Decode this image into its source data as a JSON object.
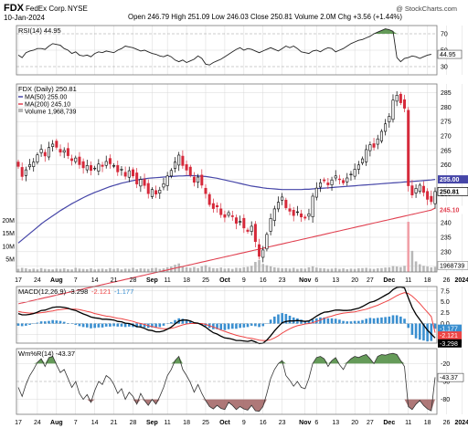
{
  "header": {
    "symbol": "FDX",
    "name": "FedEx Corp.",
    "exchange": "NYSE",
    "date": "10-Jan-2024",
    "stats": "Open 246.79  High 251.09  Low 246.03  Close 250.81  Volume 2.0M  Chg +3.56 (+1.44%)",
    "watermark": "@ StockCharts.com"
  },
  "colors": {
    "up": "#000000",
    "down": "#d6293a",
    "ma50": "#4646a8",
    "ma200": "#e04050",
    "volume": "#b8b8b8",
    "volume_peak": "#f0a0a8",
    "macd_line": "#000000",
    "signal_line": "#ee4444",
    "histogram": "#3a8fd0",
    "overbought_fill": "#4a8a3c",
    "oversold_fill": "#a06060",
    "grid": "#d8d8d8"
  },
  "chart_data": [
    {
      "type": "line",
      "panel": "rsi",
      "legend": "RSI(14) 44.95",
      "ylim": [
        20,
        80
      ],
      "y_ticks": [
        30,
        50,
        70
      ],
      "overbought": 70,
      "oversold": 30,
      "last_value_label": "44.95",
      "values": [
        44,
        41,
        47,
        49,
        50,
        52,
        52,
        51,
        55,
        58,
        57,
        56,
        52,
        50,
        46,
        48,
        44,
        43,
        44,
        42,
        46,
        48,
        47,
        49,
        48,
        47,
        50,
        52,
        55,
        54,
        53,
        51,
        49,
        50,
        48,
        46,
        45,
        43,
        42,
        44,
        42,
        38,
        36,
        38,
        35,
        37,
        39,
        43,
        40,
        33,
        32,
        35,
        37,
        39,
        42,
        45,
        48,
        51,
        53,
        50,
        52,
        51,
        49,
        47,
        49,
        51,
        53,
        51,
        49,
        52,
        55,
        53,
        55,
        52,
        48,
        47,
        46,
        49,
        50,
        48,
        51,
        53,
        52,
        48,
        50,
        52,
        55,
        58,
        60,
        62,
        63,
        65,
        67,
        70,
        72,
        74,
        76,
        75,
        73,
        41,
        36,
        40,
        41,
        43,
        42,
        40,
        42,
        44,
        45
      ]
    },
    {
      "type": "candlestick",
      "panel": "price",
      "legend": {
        "title": "FDX (Daily) 250.81",
        "ma50": "MA(50) 255.00",
        "ma200": "MA(200) 245.10",
        "volume": "Volume 1,968,739"
      },
      "ylim": [
        223,
        288
      ],
      "y_ticks": [
        225,
        230,
        235,
        240,
        245,
        250,
        255,
        260,
        265,
        270,
        275,
        280,
        285
      ],
      "volume_ticks": [
        "20M",
        "15M",
        "10M",
        "5M"
      ],
      "price_labels": {
        "close": "250.81",
        "ma50": "255.00",
        "ma200": "245.10"
      },
      "volume_label": "1968739",
      "close": [
        259.5,
        256.0,
        258.3,
        260.1,
        261.0,
        263.5,
        265.4,
        263.1,
        266.0,
        267.2,
        266.1,
        264.4,
        265.0,
        263.2,
        261.5,
        262.4,
        260.1,
        259.0,
        259.8,
        258.1,
        258.9,
        260.3,
        259.5,
        261.2,
        260.4,
        259.8,
        257.6,
        258.5,
        256.1,
        258.0,
        256.2,
        253.4,
        255.0,
        252.9,
        250.1,
        251.5,
        249.9,
        251.3,
        253.5,
        256.2,
        258.1,
        261.0,
        263.4,
        259.8,
        258.2,
        256.5,
        254.0,
        255.8,
        253.0,
        250.1,
        246.3,
        244.9,
        245.5,
        242.8,
        241.9,
        243.5,
        242.1,
        239.8,
        240.5,
        238.2,
        237.0,
        238.8,
        233.5,
        228.4,
        230.6,
        236.0,
        241.5,
        244.8,
        247.1,
        248.9,
        245.2,
        244.0,
        242.5,
        243.8,
        242.0,
        241.6,
        243.1,
        249.2,
        252.0,
        253.8,
        254.5,
        253.1,
        254.8,
        256.2,
        255.0,
        253.8,
        255.5,
        256.8,
        258.5,
        260.0,
        262.1,
        265.3,
        267.0,
        266.1,
        269.0,
        271.6,
        274.2,
        276.8,
        282.4,
        284.1,
        281.5,
        279.6,
        252.8,
        249.6,
        251.9,
        253.0,
        250.5,
        248.1,
        247.3,
        250.81
      ],
      "ma50": [
        233.0,
        234.1,
        235.2,
        236.3,
        237.4,
        238.5,
        239.6,
        240.6,
        241.5,
        242.4,
        243.3,
        244.2,
        245.0,
        245.8,
        246.6,
        247.3,
        248.0,
        248.7,
        249.3,
        249.9,
        250.5,
        251.0,
        251.5,
        252.0,
        252.5,
        252.9,
        253.3,
        253.7,
        254.0,
        254.3,
        254.6,
        254.8,
        255.0,
        255.2,
        255.4,
        255.5,
        255.6,
        255.7,
        255.8,
        255.9,
        256.0,
        256.1,
        256.2,
        256.2,
        256.3,
        256.3,
        256.3,
        256.2,
        256.1,
        256.0,
        255.8,
        255.6,
        255.4,
        255.1,
        254.8,
        254.5,
        254.2,
        253.9,
        253.6,
        253.3,
        253.0,
        252.7,
        252.5,
        252.3,
        252.1,
        251.9,
        251.8,
        251.7,
        251.6,
        251.5,
        251.5,
        251.5,
        251.5,
        251.5,
        251.5,
        251.6,
        251.6,
        251.7,
        251.8,
        251.9,
        252.0,
        252.1,
        252.2,
        252.3,
        252.4,
        252.5,
        252.6,
        252.7,
        252.8,
        252.9,
        253.0,
        253.1,
        253.2,
        253.3,
        253.4,
        253.5,
        253.6,
        253.7,
        253.8,
        253.9,
        254.0,
        254.1,
        254.2,
        254.3,
        254.4,
        254.5,
        254.6,
        254.7,
        254.8,
        255.0
      ],
      "ma200": [
        212.0,
        212.3,
        212.6,
        212.9,
        213.2,
        213.5,
        213.8,
        214.1,
        214.4,
        214.7,
        215.0,
        215.3,
        215.6,
        215.9,
        216.2,
        216.5,
        216.8,
        217.1,
        217.4,
        217.7,
        218.0,
        218.3,
        218.6,
        218.9,
        219.2,
        219.5,
        219.8,
        220.1,
        220.4,
        220.7,
        221.0,
        221.3,
        221.6,
        221.9,
        222.2,
        222.5,
        222.8,
        223.1,
        223.4,
        223.7,
        224.0,
        224.3,
        224.6,
        224.9,
        225.2,
        225.5,
        225.8,
        226.1,
        226.4,
        226.7,
        227.0,
        227.3,
        227.6,
        227.9,
        228.2,
        228.5,
        228.8,
        229.1,
        229.4,
        229.7,
        230.0,
        230.3,
        230.6,
        230.9,
        231.2,
        231.5,
        231.8,
        232.1,
        232.4,
        232.7,
        233.0,
        233.3,
        233.6,
        233.9,
        234.2,
        234.5,
        234.8,
        235.1,
        235.4,
        235.7,
        236.0,
        236.3,
        236.6,
        236.9,
        237.2,
        237.5,
        237.8,
        238.1,
        238.4,
        238.7,
        239.0,
        239.3,
        239.6,
        239.9,
        240.2,
        240.5,
        240.8,
        241.1,
        241.4,
        241.7,
        242.0,
        242.3,
        242.6,
        242.9,
        243.2,
        243.5,
        243.8,
        244.1,
        244.4,
        245.1
      ],
      "volume_m": [
        1.2,
        1.6,
        1.4,
        1.1,
        1.3,
        1.0,
        1.5,
        1.2,
        1.1,
        1.0,
        1.3,
        1.2,
        1.4,
        1.1,
        1.0,
        1.6,
        1.3,
        1.2,
        1.1,
        1.4,
        1.0,
        1.2,
        1.3,
        1.1,
        1.5,
        1.2,
        1.4,
        1.0,
        1.3,
        1.2,
        1.6,
        1.1,
        1.4,
        1.3,
        1.2,
        1.5,
        1.6,
        1.2,
        1.4,
        1.8,
        2.1,
        2.8,
        3.3,
        2.2,
        1.8,
        1.6,
        1.9,
        1.5,
        2.2,
        2.6,
        1.9,
        1.5,
        1.4,
        1.7,
        1.3,
        1.4,
        1.2,
        1.6,
        1.5,
        1.8,
        2.0,
        2.4,
        3.9,
        4.6,
        3.1,
        2.6,
        2.2,
        1.8,
        1.6,
        1.4,
        1.5,
        1.3,
        1.6,
        1.2,
        1.4,
        1.3,
        1.8,
        2.2,
        1.7,
        1.5,
        1.4,
        1.2,
        1.3,
        1.5,
        1.2,
        1.4,
        1.1,
        1.3,
        1.2,
        1.4,
        1.5,
        1.6,
        1.3,
        1.2,
        1.4,
        1.5,
        1.7,
        1.8,
        2.3,
        2.1,
        1.9,
        2.4,
        19.5,
        8.2,
        4.1,
        3.0,
        2.4,
        2.1,
        1.8,
        2.0
      ]
    },
    {
      "type": "line",
      "panel": "macd",
      "legend": {
        "title": "MACD(12,26,9)",
        "macd": "-3.298",
        "signal": "-2.121",
        "histogram": "-1.177"
      },
      "ylim": [
        -4.5,
        8.5
      ],
      "y_ticks": [
        "7.5",
        "5.0",
        "2.5",
        "0.0",
        "-2.5"
      ],
      "value_labels": [
        "-1.177",
        "-2.121",
        "-3.298"
      ],
      "macd": [
        2.3,
        2.0,
        2.0,
        2.1,
        2.3,
        2.6,
        3.0,
        3.1,
        3.4,
        3.7,
        3.8,
        3.8,
        3.7,
        3.5,
        3.2,
        3.0,
        2.6,
        2.2,
        1.9,
        1.5,
        1.3,
        1.2,
        1.0,
        1.0,
        0.9,
        0.8,
        0.5,
        0.4,
        0.1,
        0.0,
        -0.3,
        -0.7,
        -0.8,
        -1.1,
        -1.5,
        -1.6,
        -1.9,
        -1.9,
        -1.7,
        -1.3,
        -0.8,
        -0.1,
        0.6,
        0.8,
        0.8,
        0.6,
        0.2,
        0.1,
        -0.3,
        -0.8,
        -1.5,
        -2.1,
        -2.4,
        -2.9,
        -3.3,
        -3.4,
        -3.6,
        -3.9,
        -3.9,
        -4.0,
        -4.1,
        -3.9,
        -4.2,
        -4.6,
        -4.5,
        -3.8,
        -2.8,
        -1.7,
        -0.7,
        0.2,
        0.5,
        0.6,
        0.6,
        0.7,
        0.6,
        0.5,
        0.6,
        1.1,
        1.7,
        2.2,
        2.6,
        2.7,
        2.9,
        3.1,
        3.1,
        3.0,
        3.0,
        3.1,
        3.3,
        3.5,
        3.9,
        4.4,
        4.9,
        5.1,
        5.5,
        6.0,
        6.5,
        7.0,
        7.8,
        8.3,
        8.4,
        8.2,
        5.9,
        3.7,
        2.1,
        0.9,
        -0.3,
        -1.5,
        -2.4,
        -3.3
      ],
      "signal": [
        2.8,
        2.6,
        2.5,
        2.4,
        2.4,
        2.4,
        2.5,
        2.6,
        2.8,
        2.9,
        3.1,
        3.2,
        3.3,
        3.4,
        3.3,
        3.3,
        3.2,
        3.0,
        2.8,
        2.6,
        2.3,
        2.1,
        1.9,
        1.7,
        1.6,
        1.4,
        1.2,
        1.1,
        0.9,
        0.7,
        0.5,
        0.2,
        0.0,
        -0.2,
        -0.5,
        -0.7,
        -0.9,
        -1.1,
        -1.2,
        -1.2,
        -1.1,
        -0.9,
        -0.6,
        -0.3,
        -0.1,
        0.0,
        0.0,
        0.0,
        0.0,
        -0.2,
        -0.5,
        -0.8,
        -1.1,
        -1.5,
        -1.8,
        -2.1,
        -2.4,
        -2.7,
        -2.9,
        -3.1,
        -3.3,
        -3.4,
        -3.6,
        -3.8,
        -3.9,
        -3.9,
        -3.7,
        -3.3,
        -2.8,
        -2.2,
        -1.7,
        -1.2,
        -0.8,
        -0.5,
        -0.3,
        -0.1,
        0.0,
        0.2,
        0.5,
        0.8,
        1.2,
        1.5,
        1.7,
        2.0,
        2.2,
        2.4,
        2.5,
        2.6,
        2.7,
        2.9,
        3.1,
        3.3,
        3.6,
        3.9,
        4.2,
        4.6,
        5.0,
        5.4,
        5.9,
        6.4,
        6.8,
        7.1,
        6.9,
        6.3,
        5.5,
        4.6,
        3.6,
        2.6,
        1.6,
        -2.1
      ],
      "histogram": [
        -0.5,
        -0.6,
        -0.5,
        -0.3,
        -0.1,
        0.2,
        0.5,
        0.5,
        0.6,
        0.8,
        0.7,
        0.6,
        0.4,
        0.1,
        -0.1,
        -0.3,
        -0.6,
        -0.8,
        -0.9,
        -1.1,
        -1.0,
        -0.9,
        -0.9,
        -0.7,
        -0.7,
        -0.6,
        -0.7,
        -0.7,
        -0.8,
        -0.7,
        -0.8,
        -0.9,
        -0.8,
        -0.9,
        -1.0,
        -0.9,
        -1.0,
        -0.8,
        -0.5,
        -0.1,
        0.3,
        0.8,
        1.2,
        1.1,
        0.9,
        0.6,
        0.2,
        0.1,
        -0.3,
        -0.6,
        -1.0,
        -1.3,
        -1.3,
        -1.4,
        -1.5,
        -1.3,
        -1.2,
        -1.2,
        -1.0,
        -0.9,
        -0.8,
        -0.5,
        -0.6,
        -0.8,
        -0.6,
        0.1,
        0.9,
        1.6,
        2.1,
        2.4,
        2.2,
        1.8,
        1.4,
        1.2,
        0.9,
        0.6,
        0.6,
        0.9,
        1.2,
        1.4,
        1.4,
        1.2,
        1.2,
        1.1,
        0.9,
        0.6,
        0.5,
        0.5,
        0.6,
        0.6,
        0.8,
        1.1,
        1.3,
        1.2,
        1.3,
        1.4,
        1.5,
        1.6,
        1.9,
        1.9,
        1.6,
        1.1,
        -1.0,
        -2.6,
        -3.4,
        -3.7,
        -3.9,
        -4.1,
        -4.0,
        -1.2
      ]
    },
    {
      "type": "line",
      "panel": "williams",
      "legend": "Wm%R(14) -43.37",
      "ylim": [
        -105,
        5
      ],
      "y_ticks": [
        "-20",
        "-50",
        "-80"
      ],
      "overbought": -20,
      "oversold": -80,
      "last_value_label": "-43.37",
      "values": [
        -60,
        -75,
        -55,
        -40,
        -30,
        -18,
        -12,
        -25,
        -10,
        -8,
        -22,
        -35,
        -30,
        -45,
        -60,
        -50,
        -70,
        -80,
        -72,
        -85,
        -65,
        -50,
        -55,
        -40,
        -45,
        -55,
        -70,
        -62,
        -80,
        -68,
        -75,
        -88,
        -70,
        -82,
        -90,
        -80,
        -88,
        -75,
        -60,
        -40,
        -30,
        -15,
        -8,
        -30,
        -40,
        -52,
        -68,
        -55,
        -70,
        -82,
        -92,
        -96,
        -90,
        -95,
        -97,
        -85,
        -90,
        -97,
        -92,
        -96,
        -98,
        -90,
        -99,
        -100,
        -92,
        -70,
        -45,
        -30,
        -20,
        -15,
        -40,
        -48,
        -58,
        -50,
        -60,
        -62,
        -45,
        -20,
        -10,
        -8,
        -12,
        -25,
        -15,
        -10,
        -22,
        -30,
        -18,
        -12,
        -8,
        -10,
        -7,
        -5,
        -12,
        -20,
        -8,
        -5,
        -6,
        -4,
        -3,
        -5,
        -15,
        -25,
        -92,
        -97,
        -88,
        -82,
        -90,
        -96,
        -99,
        -43
      ]
    }
  ],
  "x_axis": {
    "labels": [
      {
        "text": "17",
        "i": 0
      },
      {
        "text": "24",
        "i": 5
      },
      {
        "text": "Aug",
        "i": 10,
        "bold": true
      },
      {
        "text": "7",
        "i": 15
      },
      {
        "text": "14",
        "i": 20
      },
      {
        "text": "21",
        "i": 25
      },
      {
        "text": "28",
        "i": 30
      },
      {
        "text": "Sep",
        "i": 35,
        "bold": true
      },
      {
        "text": "11",
        "i": 39
      },
      {
        "text": "18",
        "i": 44
      },
      {
        "text": "25",
        "i": 49
      },
      {
        "text": "Oct",
        "i": 54,
        "bold": true
      },
      {
        "text": "9",
        "i": 59
      },
      {
        "text": "16",
        "i": 64
      },
      {
        "text": "23",
        "i": 69
      },
      {
        "text": "Nov",
        "i": 75,
        "bold": true
      },
      {
        "text": "6",
        "i": 78
      },
      {
        "text": "13",
        "i": 83
      },
      {
        "text": "20",
        "i": 88
      },
      {
        "text": "27",
        "i": 92
      },
      {
        "text": "Dec",
        "i": 97,
        "bold": true
      },
      {
        "text": "11",
        "i": 102
      },
      {
        "text": "18",
        "i": 107
      },
      {
        "text": "26",
        "i": 112
      },
      {
        "text": "2024",
        "i": 116,
        "bold": true
      },
      {
        "text": "8",
        "i": 120
      }
    ]
  }
}
